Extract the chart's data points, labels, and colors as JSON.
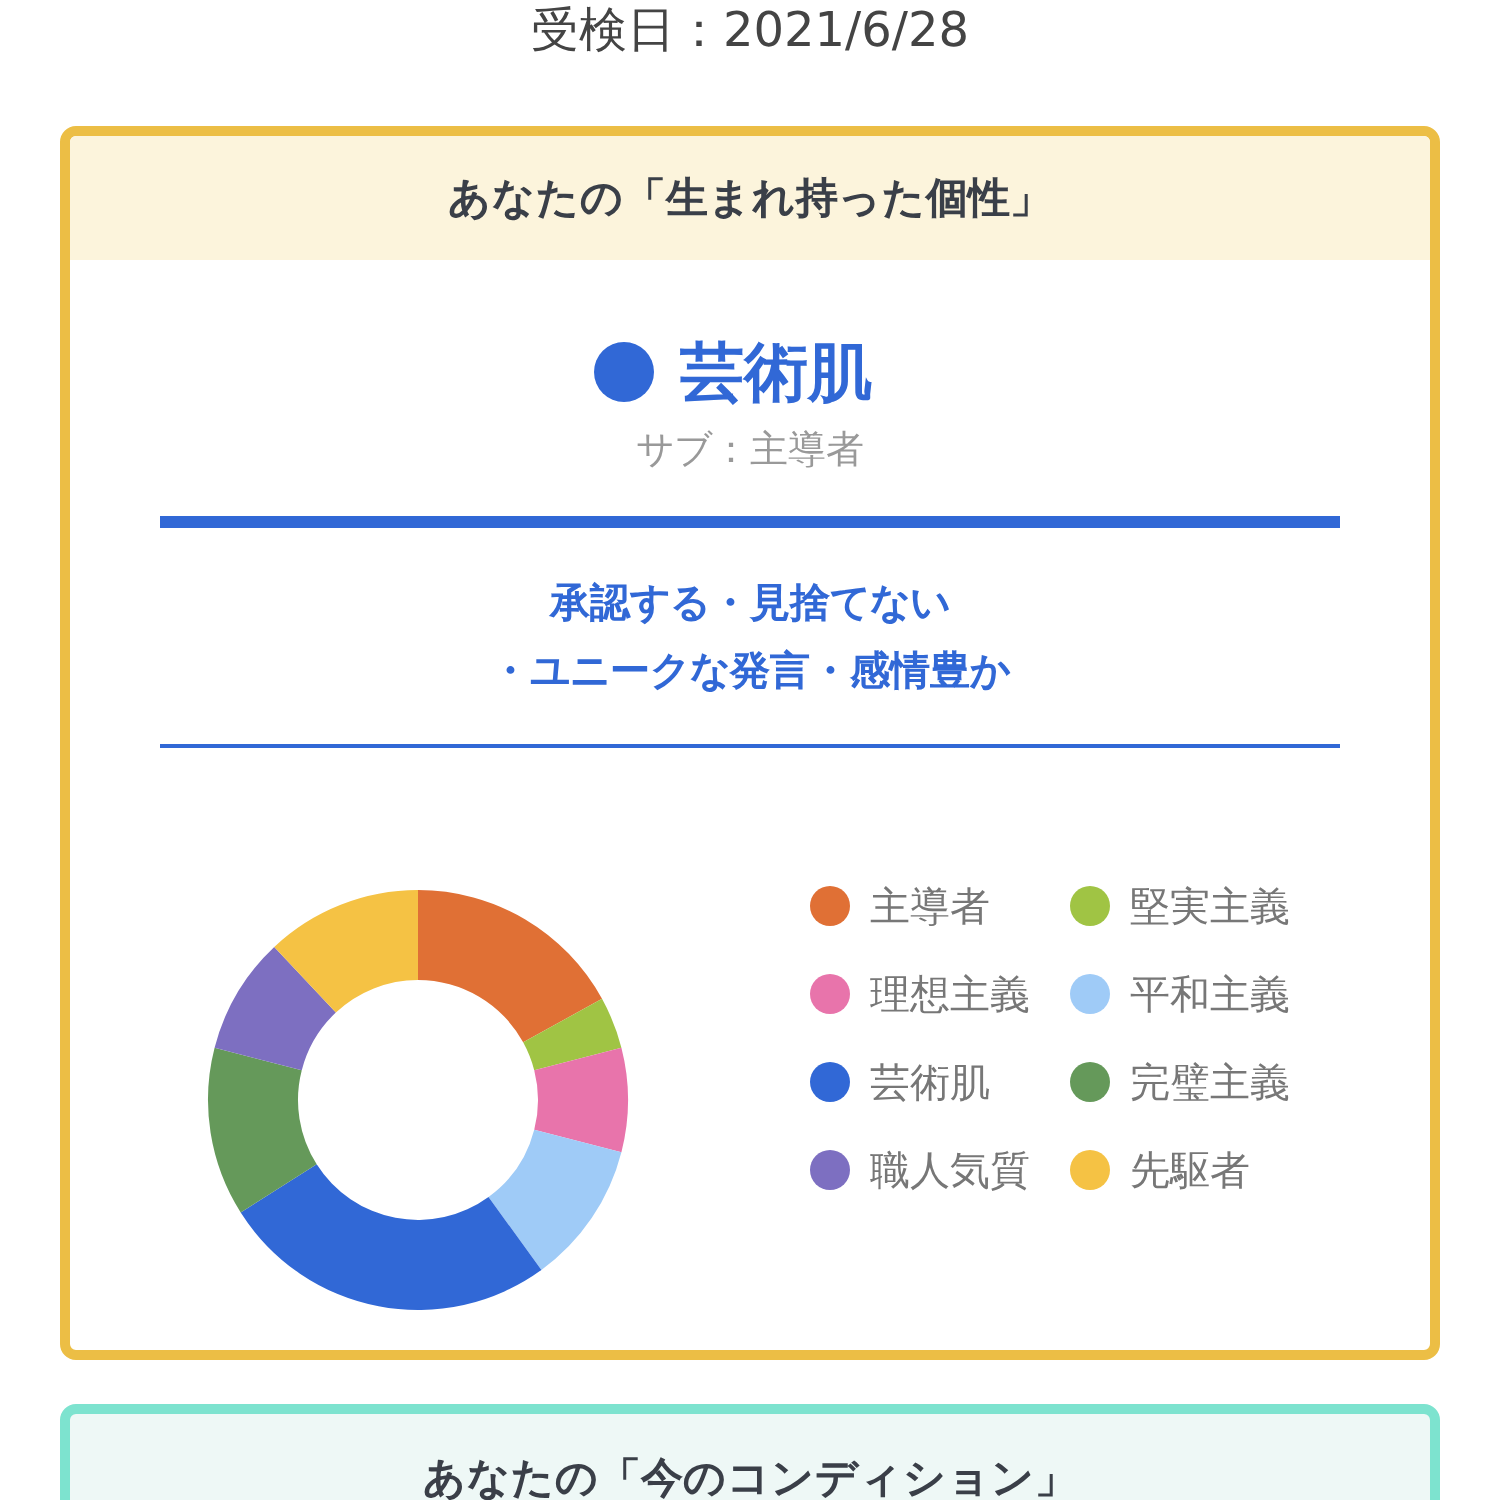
{
  "chart_data": {
    "type": "donut",
    "title": "あなたの「生まれ持った個性」",
    "annotations": [
      "受検日：2021/6/28",
      "芸術肌",
      "サブ：主導者",
      "承認する・見捨てない",
      "・ユニークな発言・感情豊か",
      "あなたの「今のコンディション」"
    ],
    "categories": [
      "主導者",
      "堅実主義",
      "理想主義",
      "平和主義",
      "芸術肌",
      "完璧主義",
      "職人気質",
      "先駆者"
    ],
    "values": [
      17,
      4,
      8,
      11,
      26,
      13,
      9,
      12
    ],
    "colors": [
      "#e07035",
      "#a0c444",
      "#e874ab",
      "#9fcbf7",
      "#3168d6",
      "#65995a",
      "#7d6fc1",
      "#f5c244"
    ],
    "legend": "right"
  }
}
